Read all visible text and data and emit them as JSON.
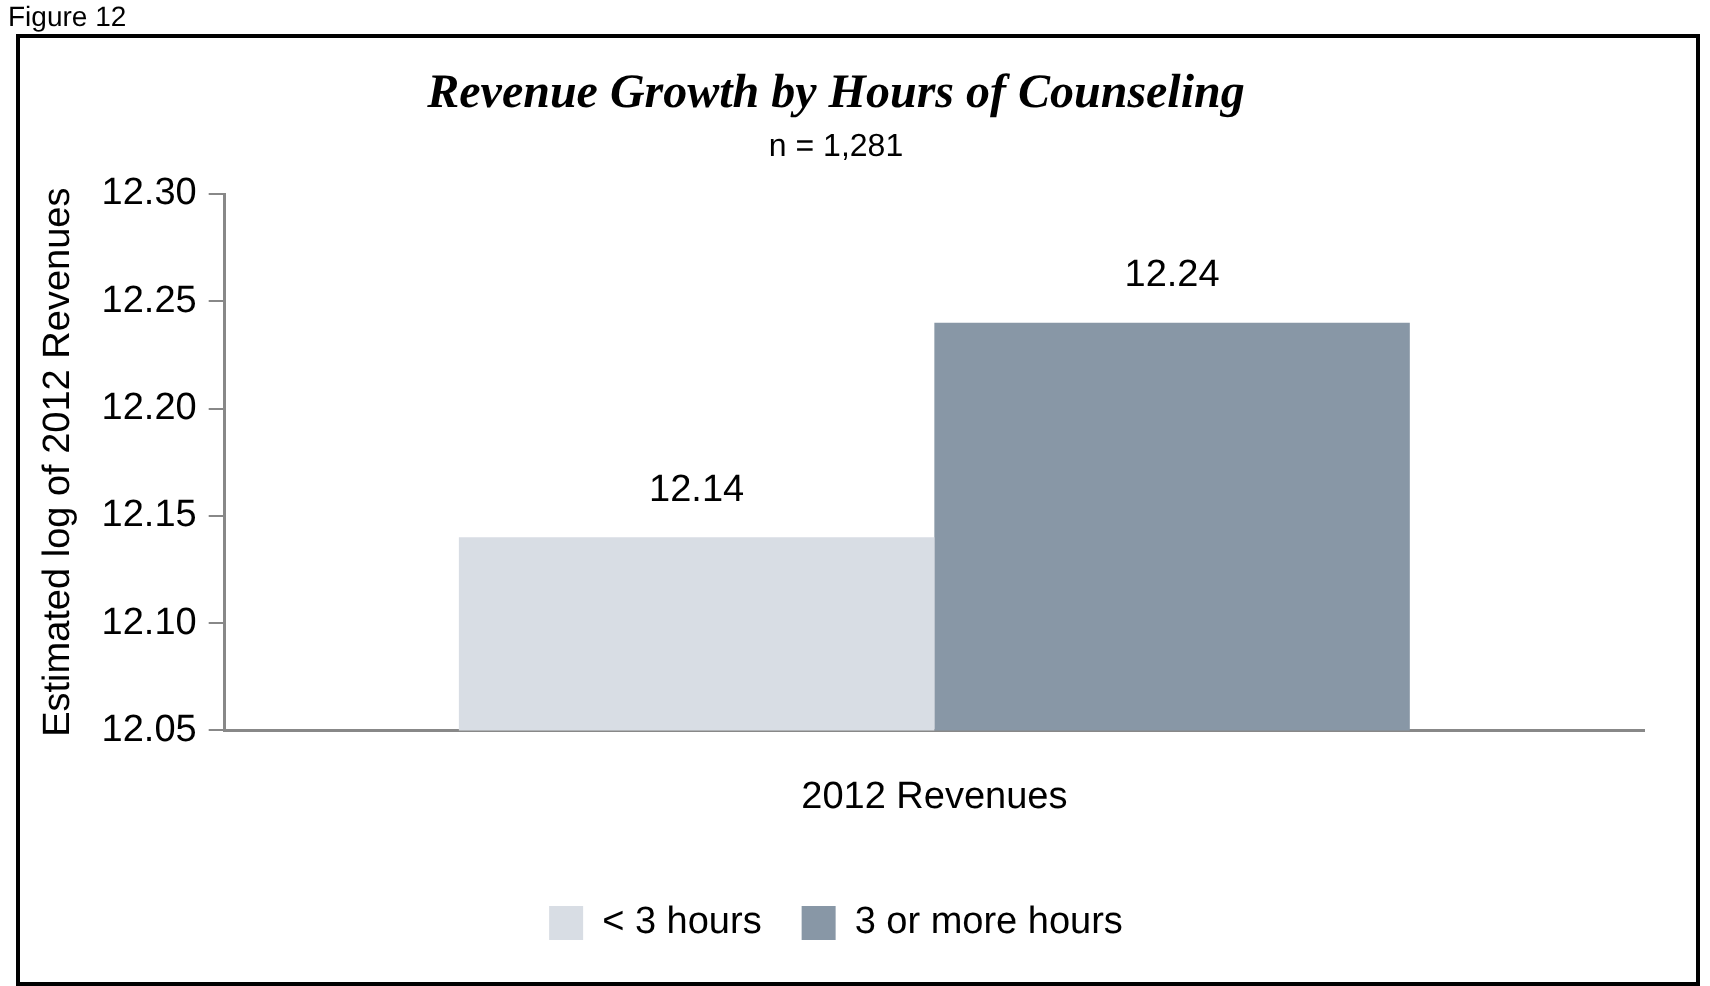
{
  "chart_data": {
    "type": "bar",
    "title": "Revenue Growth by Hours of Counseling",
    "subtitle": "n = 1,281",
    "ylabel": "Estimated log of 2012 Revenues",
    "annotations": [
      "Figure 12"
    ],
    "categories": [
      "2012 Revenues"
    ],
    "series": [
      {
        "name": "< 3 hours",
        "color": "#d8dde4",
        "values": [
          12.14
        ]
      },
      {
        "name": "3 or more hours",
        "color": "#8897a6",
        "values": [
          12.24
        ]
      }
    ],
    "ylim": [
      12.05,
      12.3
    ],
    "yticks": [
      12.05,
      {
        "value": 12.1,
        "label": "12.10"
      },
      12.15,
      {
        "value": 12.2,
        "label": "12.20"
      },
      12.25,
      {
        "value": 12.3,
        "label": "12.30"
      }
    ],
    "grid": false,
    "legend": "bottom",
    "data_labels": true
  }
}
